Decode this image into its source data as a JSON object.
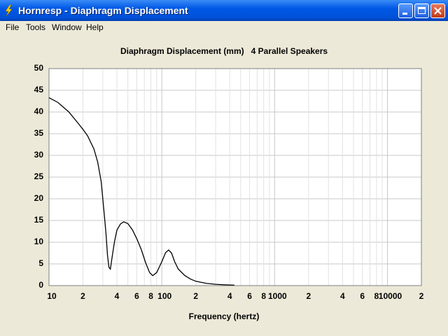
{
  "window": {
    "title": "Hornresp - Diaphragm Displacement"
  },
  "menu": [
    "File",
    "Tools",
    "Window",
    "Help"
  ],
  "chart_data": {
    "type": "line",
    "title": "Diaphragm Displacement (mm)   4 Parallel Speakers",
    "x_label": "Frequency (hertz)",
    "log_x": true,
    "grid": true,
    "xlim": [
      10,
      20000
    ],
    "ylim": [
      0,
      50
    ],
    "xticks": [
      10,
      {
        "value": 20,
        "label": "2"
      },
      {
        "value": 40,
        "label": "4"
      },
      {
        "value": 60,
        "label": "6"
      },
      {
        "value": 80,
        "label": "8"
      },
      100,
      {
        "value": 200,
        "label": "2"
      },
      {
        "value": 400,
        "label": "4"
      },
      {
        "value": 600,
        "label": "6"
      },
      {
        "value": 800,
        "label": "8"
      },
      1000,
      {
        "value": 2000,
        "label": "2"
      },
      {
        "value": 4000,
        "label": "4"
      },
      {
        "value": 6000,
        "label": "6"
      },
      {
        "value": 8000,
        "label": "8"
      },
      10000,
      {
        "value": 20000,
        "label": "2"
      }
    ],
    "xticks_minor": [
      30,
      50,
      70,
      90,
      300,
      500,
      700,
      900,
      3000,
      5000,
      7000,
      9000
    ],
    "yticks": [
      0,
      5,
      10,
      15,
      20,
      25,
      30,
      35,
      40,
      45,
      50
    ],
    "series": [
      {
        "color": "#000000",
        "x": [
          10,
          12,
          15,
          18,
          20,
          22,
          25,
          27,
          29,
          31,
          32,
          33,
          34,
          35,
          36,
          38,
          40,
          43,
          46,
          50,
          55,
          60,
          66,
          72,
          78,
          83,
          90,
          100,
          108,
          115,
          122,
          130,
          140,
          160,
          180,
          200,
          250,
          300,
          350,
          440
        ],
        "values": [
          43.3,
          42.2,
          40,
          37.5,
          36,
          34.5,
          31.5,
          28.5,
          24,
          16,
          12,
          7,
          4.2,
          3.8,
          6,
          10,
          12.8,
          14.2,
          14.7,
          14.3,
          12.8,
          10.8,
          8.2,
          5.2,
          3,
          2.3,
          3,
          5.5,
          7.6,
          8.2,
          7.5,
          5.5,
          3.8,
          2.3,
          1.5,
          1,
          0.5,
          0.3,
          0.2,
          0.1
        ]
      }
    ]
  }
}
